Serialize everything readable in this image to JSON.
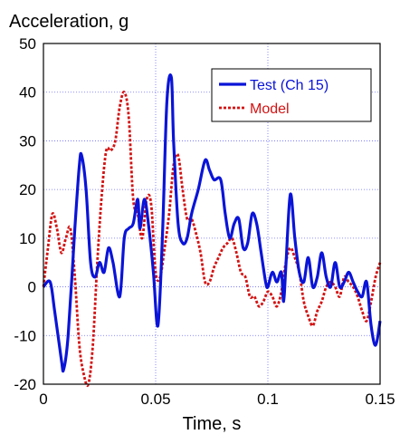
{
  "chart_data": {
    "type": "line",
    "xlabel": "Time, s",
    "ylabel": "Acceleration, g",
    "xlim": [
      0,
      0.15
    ],
    "ylim": [
      -20,
      50
    ],
    "xticks": [
      0,
      0.05,
      0.1,
      0.15
    ],
    "xtick_labels": [
      "0",
      "0.05",
      "0.1",
      "0.15"
    ],
    "yticks": [
      -20,
      -10,
      0,
      10,
      20,
      30,
      40,
      50
    ],
    "ytick_labels": [
      "-20",
      "-10",
      "0",
      "10",
      "20",
      "30",
      "40",
      "50"
    ],
    "grid": true,
    "legend": "top-right",
    "series": [
      {
        "name": "Test (Ch 15)",
        "color": "#0a14d8",
        "style": "solid",
        "x": [
          0,
          0.003,
          0.005,
          0.008,
          0.009,
          0.011,
          0.014,
          0.016,
          0.017,
          0.019,
          0.021,
          0.023,
          0.025,
          0.027,
          0.029,
          0.031,
          0.034,
          0.036,
          0.038,
          0.04,
          0.042,
          0.043,
          0.045,
          0.047,
          0.049,
          0.051,
          0.053,
          0.055,
          0.057,
          0.058,
          0.06,
          0.062,
          0.064,
          0.066,
          0.069,
          0.072,
          0.074,
          0.076,
          0.079,
          0.081,
          0.083,
          0.085,
          0.087,
          0.089,
          0.091,
          0.093,
          0.095,
          0.097,
          0.099,
          0.1,
          0.102,
          0.104,
          0.106,
          0.107,
          0.108,
          0.11,
          0.112,
          0.114,
          0.116,
          0.118,
          0.12,
          0.122,
          0.124,
          0.126,
          0.128,
          0.13,
          0.132,
          0.134,
          0.136,
          0.138,
          0.14,
          0.142,
          0.144,
          0.146,
          0.148,
          0.15
        ],
        "y": [
          0,
          1,
          -5,
          -15,
          -17,
          -10,
          12,
          25,
          27,
          20,
          5,
          2,
          5,
          3,
          8,
          5,
          -2,
          10,
          12,
          13,
          18,
          12,
          18,
          12,
          3,
          -8,
          10,
          38,
          43,
          30,
          13,
          9,
          10,
          15,
          20,
          26,
          24,
          22,
          22,
          15,
          10,
          13,
          14,
          8,
          9,
          15,
          13,
          7,
          1,
          0,
          3,
          1,
          3,
          -3,
          4,
          19,
          10,
          3,
          1,
          6,
          0,
          2,
          7,
          2,
          0,
          5,
          0,
          1,
          3,
          1,
          -1,
          -2,
          1,
          -8,
          -12,
          -7
        ]
      },
      {
        "name": "Model",
        "color": "#d41212",
        "style": "dashed",
        "x": [
          0,
          0.002,
          0.004,
          0.006,
          0.008,
          0.01,
          0.012,
          0.014,
          0.016,
          0.018,
          0.02,
          0.022,
          0.024,
          0.026,
          0.028,
          0.03,
          0.032,
          0.034,
          0.036,
          0.038,
          0.04,
          0.042,
          0.044,
          0.046,
          0.048,
          0.05,
          0.052,
          0.054,
          0.056,
          0.058,
          0.06,
          0.062,
          0.064,
          0.066,
          0.068,
          0.07,
          0.072,
          0.074,
          0.076,
          0.078,
          0.08,
          0.082,
          0.084,
          0.086,
          0.088,
          0.09,
          0.092,
          0.094,
          0.096,
          0.098,
          0.1,
          0.102,
          0.104,
          0.106,
          0.108,
          0.11,
          0.112,
          0.114,
          0.116,
          0.118,
          0.12,
          0.122,
          0.124,
          0.126,
          0.128,
          0.13,
          0.132,
          0.134,
          0.136,
          0.138,
          0.14,
          0.142,
          0.144,
          0.146,
          0.148,
          0.15
        ],
        "y": [
          0,
          8,
          15,
          12,
          7,
          10,
          12,
          2,
          -12,
          -18,
          -20,
          -12,
          5,
          19,
          28,
          28,
          30,
          37,
          40,
          35,
          18,
          15,
          10,
          18,
          17,
          3,
          2,
          8,
          15,
          25,
          27,
          20,
          14,
          14,
          11,
          7,
          1,
          1,
          4,
          6,
          8,
          9,
          10,
          7,
          3,
          2,
          -2,
          -2,
          -4,
          -3,
          -1,
          -2,
          -4,
          -1,
          5,
          8,
          6,
          3,
          -3,
          -6,
          -8,
          -5,
          -3,
          0,
          1,
          0,
          -2,
          2,
          1,
          0,
          -2,
          -5,
          -7,
          -3,
          2,
          5
        ]
      }
    ]
  }
}
